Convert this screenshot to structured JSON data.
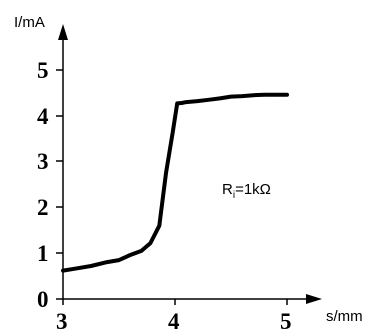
{
  "chart_data": {
    "type": "line",
    "title": "",
    "ylabel": "I/mA",
    "xlabel": "s/mm",
    "xlim": [
      3,
      5.18
    ],
    "ylim": [
      0,
      5.6
    ],
    "x_ticks": [
      "3",
      "4",
      "5"
    ],
    "y_ticks": [
      "0",
      "1",
      "2",
      "3",
      "4",
      "5"
    ],
    "annotation": {
      "base": "R",
      "subscript": "i",
      "rest": "=1kΩ"
    },
    "series": [
      {
        "x": [
          3.0,
          3.1,
          3.25,
          3.38,
          3.5,
          3.6,
          3.7,
          3.78,
          3.86,
          3.92,
          3.98,
          4.02,
          4.06,
          4.1,
          4.2,
          4.3,
          4.4,
          4.5,
          4.6,
          4.7,
          4.8,
          4.9,
          5.0
        ],
        "y": [
          0.62,
          0.66,
          0.72,
          0.8,
          0.85,
          0.96,
          1.05,
          1.22,
          1.6,
          2.75,
          3.65,
          4.27,
          4.28,
          4.3,
          4.32,
          4.35,
          4.38,
          4.42,
          4.43,
          4.45,
          4.46,
          4.46,
          4.46
        ],
        "color": "#000000"
      }
    ],
    "grid": false,
    "legend": "none"
  }
}
